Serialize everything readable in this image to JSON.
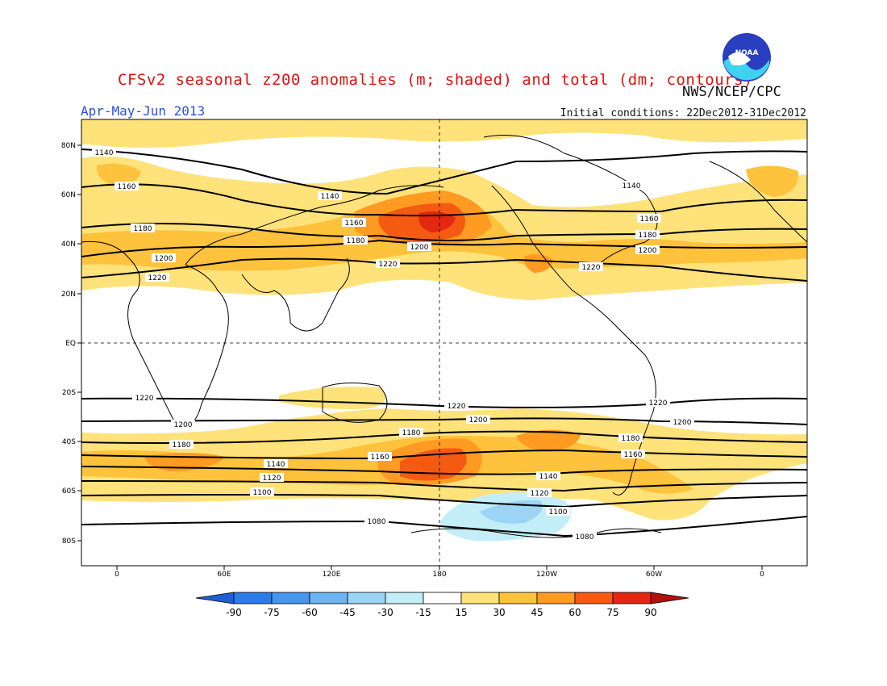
{
  "title": "CFSv2 seasonal z200 anomalies (m; shaded) and total (dm; contours)",
  "org": "NWS/NCEP/CPC",
  "season": "Apr-May-Jun 2013",
  "initial_conditions": "Initial conditions: 22Dec2012-31Dec2012",
  "logo_text": "NOAA",
  "map": {
    "lat_ticks": [
      "80N",
      "60N",
      "40N",
      "20N",
      "EQ",
      "20S",
      "40S",
      "60S",
      "80S"
    ],
    "lon_ticks": [
      "0",
      "60E",
      "120E",
      "180",
      "120W",
      "60W",
      "0"
    ],
    "contour_labels": {
      "1080": "1080",
      "1100": "1100",
      "1120": "1120",
      "1140": "1140",
      "1160": "1160",
      "1180": "1180",
      "1200": "1200",
      "1220": "1220"
    }
  },
  "colorbar": {
    "labels": [
      "-90",
      "-75",
      "-60",
      "-45",
      "-30",
      "-15",
      "15",
      "30",
      "45",
      "60",
      "75",
      "90"
    ],
    "colors": [
      "#1e5fd6",
      "#2b7be8",
      "#4596ee",
      "#6cb4f2",
      "#9bd4f5",
      "#c3eef8",
      "#ffffff",
      "#ffe27a",
      "#ffc23c",
      "#ff9a22",
      "#f45a12",
      "#e22810",
      "#b30f0f"
    ]
  },
  "colors": {
    "title": "#e01010",
    "season": "#2a4ddf",
    "contour": "#000000"
  }
}
